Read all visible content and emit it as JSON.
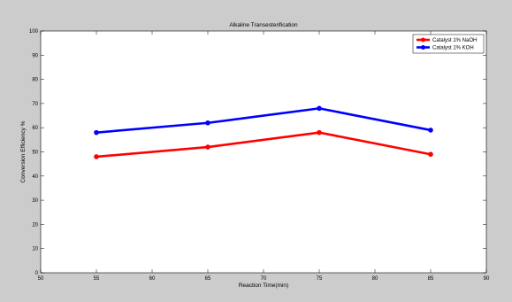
{
  "chart_data": {
    "type": "line",
    "title": "Alkaline Transesterification",
    "xlabel": "Reaction Time(min)",
    "ylabel": "Conversion Efficiency %",
    "xlim": [
      50,
      90
    ],
    "ylim": [
      0,
      100
    ],
    "x_ticks": [
      50,
      55,
      60,
      65,
      70,
      75,
      80,
      85,
      90
    ],
    "y_ticks": [
      0,
      10,
      20,
      30,
      40,
      50,
      60,
      70,
      80,
      90,
      100
    ],
    "grid": false,
    "legend_position": "top-right",
    "x": [
      55,
      65,
      75,
      85
    ],
    "series": [
      {
        "name": "Catalyst 1% NaOH",
        "color": "#ff0000",
        "values": [
          48,
          52,
          58,
          49
        ]
      },
      {
        "name": "Catalyst 1% KOH",
        "color": "#0000ff",
        "values": [
          58,
          62,
          68,
          59
        ]
      }
    ]
  }
}
